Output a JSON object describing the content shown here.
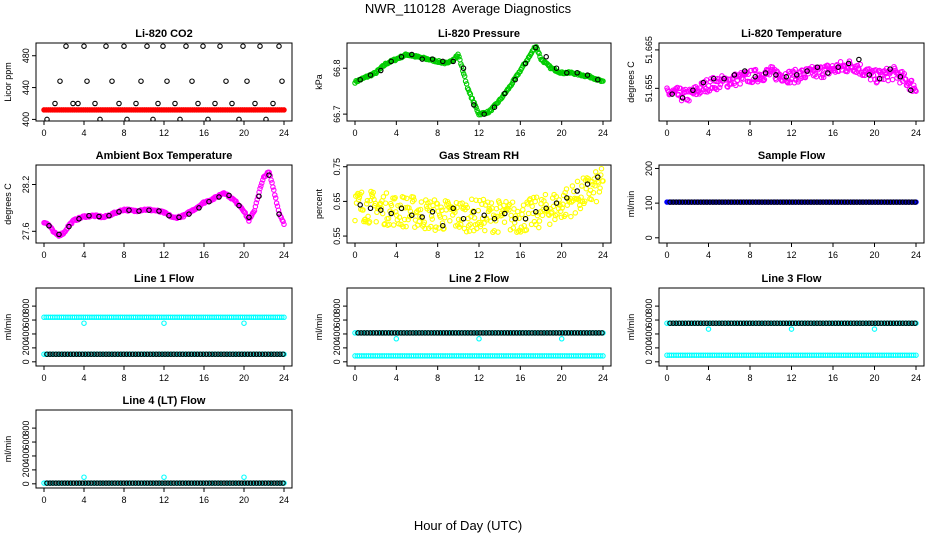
{
  "page": {
    "title": "NWR_110128  Average Diagnostics",
    "xlabel": "Hour of Day (UTC)"
  },
  "colors": {
    "black": "#000000",
    "red": "#ff0000",
    "green": "#00cc00",
    "magenta": "#ff00ff",
    "yellow": "#ffff00",
    "cyan": "#00ffff",
    "blue": "#0000ff"
  },
  "chart_data": [
    {
      "type": "scatter",
      "title": "Li-820 CO2",
      "ylabel": "Licor ppm",
      "xlim": [
        0,
        24
      ],
      "xticks": [
        0,
        4,
        8,
        12,
        16,
        20,
        24
      ],
      "ylim": [
        398,
        496
      ],
      "yticks": [
        400,
        440,
        480
      ],
      "series": [
        {
          "color": "red",
          "style": "band",
          "x": [
            0,
            24
          ],
          "y": [
            412,
            412
          ]
        },
        {
          "color": "black",
          "style": "points",
          "x": [
            0.3,
            1.1,
            1.6,
            2.2,
            2.9,
            3.4,
            4.0,
            4.3,
            5.1,
            5.6,
            6.2,
            6.8,
            7.5,
            8.0,
            8.3,
            9.2,
            9.7,
            10.3,
            10.9,
            11.4,
            11.9,
            12.3,
            13.1,
            13.6,
            14.2,
            14.8,
            15.4,
            15.9,
            16.4,
            17.1,
            17.6,
            18.2,
            18.8,
            19.5,
            19.9,
            20.3,
            21.1,
            21.6,
            22.2,
            22.9,
            23.5,
            23.8
          ],
          "y": [
            400,
            420,
            448,
            492,
            420,
            420,
            492,
            448,
            420,
            400,
            492,
            448,
            420,
            492,
            400,
            420,
            448,
            492,
            400,
            420,
            492,
            448,
            420,
            400,
            492,
            448,
            420,
            492,
            400,
            420,
            492,
            448,
            420,
            400,
            492,
            448,
            420,
            492,
            400,
            420,
            492,
            448
          ]
        }
      ]
    },
    {
      "type": "scatter",
      "title": "Li-820 Pressure",
      "ylabel": "kPa",
      "xlim": [
        0,
        24
      ],
      "xticks": [
        0,
        4,
        8,
        12,
        16,
        20,
        24
      ],
      "ylim": [
        66.685,
        66.855
      ],
      "yticks": [
        66.7,
        66.8
      ],
      "series": [
        {
          "color": "green",
          "style": "dense",
          "x": [
            0,
            1,
            2,
            3,
            4,
            5,
            6,
            7,
            8,
            9,
            10,
            11,
            12,
            13,
            14,
            15,
            16,
            17,
            17.5,
            18,
            19,
            20,
            21,
            22,
            23,
            24
          ],
          "y": [
            66.77,
            66.78,
            66.79,
            66.81,
            66.82,
            66.83,
            66.825,
            66.82,
            66.815,
            66.81,
            66.83,
            66.75,
            66.7,
            66.705,
            66.73,
            66.76,
            66.795,
            66.83,
            66.85,
            66.82,
            66.8,
            66.79,
            66.79,
            66.785,
            66.78,
            66.77
          ]
        },
        {
          "color": "black",
          "style": "points",
          "x": [
            0.5,
            1.5,
            2.5,
            3.5,
            4.5,
            5.5,
            6.5,
            7.5,
            8.5,
            9.5,
            10.5,
            11.5,
            12.5,
            13.5,
            14.5,
            15.5,
            16.5,
            17.5,
            18.5,
            19.5,
            20.5,
            21.5,
            22.5,
            23.5
          ],
          "y": [
            66.775,
            66.785,
            66.795,
            66.815,
            66.825,
            66.83,
            66.82,
            66.82,
            66.815,
            66.815,
            66.8,
            66.72,
            66.7,
            66.715,
            66.745,
            66.775,
            66.81,
            66.845,
            66.825,
            66.8,
            66.79,
            66.79,
            66.785,
            66.775
          ]
        }
      ]
    },
    {
      "type": "scatter",
      "title": "Li-820 Temperature",
      "ylabel": "degrees C",
      "xlim": [
        0,
        24
      ],
      "xticks": [
        0,
        4,
        8,
        12,
        16,
        20,
        24
      ],
      "ylim": [
        51.6465,
        51.6668
      ],
      "yticks": [
        51.655,
        51.665
      ],
      "series": [
        {
          "color": "magenta",
          "style": "noisy",
          "x": [
            0,
            2,
            4,
            6,
            8,
            10,
            12,
            14,
            16,
            18,
            20,
            22,
            24
          ],
          "y": [
            51.654,
            51.653,
            51.656,
            51.657,
            51.658,
            51.659,
            51.658,
            51.659,
            51.66,
            51.661,
            51.658,
            51.659,
            51.655
          ],
          "spread": 0.0035
        },
        {
          "color": "black",
          "style": "points",
          "x": [
            0.5,
            1.5,
            2.5,
            3.5,
            4.5,
            5.5,
            6.5,
            7.5,
            8.5,
            9.5,
            10.5,
            11.5,
            12.5,
            13.5,
            14.5,
            15.5,
            16.5,
            17.5,
            18.5,
            19.5,
            20.5,
            21.5,
            22.5,
            23.5
          ],
          "y": [
            51.6535,
            51.6525,
            51.6545,
            51.6565,
            51.6575,
            51.6575,
            51.6585,
            51.6595,
            51.658,
            51.659,
            51.6585,
            51.658,
            51.6585,
            51.6595,
            51.6605,
            51.659,
            51.6605,
            51.6615,
            51.6625,
            51.6585,
            51.6575,
            51.66,
            51.658,
            51.6545
          ]
        }
      ]
    },
    {
      "type": "scatter",
      "title": "Ambient Box Temperature",
      "ylabel": "degrees C",
      "xlim": [
        0,
        24
      ],
      "xticks": [
        0,
        4,
        8,
        12,
        16,
        20,
        24
      ],
      "ylim": [
        27.45,
        28.45
      ],
      "yticks": [
        27.6,
        28.2
      ],
      "series": [
        {
          "color": "magenta",
          "style": "dense",
          "x": [
            0,
            0.5,
            1,
            1.5,
            2,
            2.5,
            3,
            4,
            5,
            6,
            7,
            8,
            9,
            10,
            11,
            12,
            13,
            14,
            15,
            16,
            17,
            18,
            19,
            19.8,
            20.5,
            21,
            21.5,
            22,
            22.5,
            23,
            23.5,
            24
          ],
          "y": [
            27.72,
            27.68,
            27.58,
            27.55,
            27.58,
            27.68,
            27.74,
            27.79,
            27.8,
            27.78,
            27.83,
            27.88,
            27.86,
            27.88,
            27.87,
            27.84,
            27.77,
            27.8,
            27.88,
            27.97,
            28.02,
            28.1,
            28.0,
            27.9,
            27.74,
            27.85,
            28.1,
            28.3,
            28.36,
            28.12,
            27.84,
            27.7
          ]
        },
        {
          "color": "black",
          "style": "points",
          "x": [
            0.5,
            1.5,
            2.5,
            3.5,
            4.5,
            5.5,
            6.5,
            7.5,
            8.5,
            9.5,
            10.5,
            11.5,
            12.5,
            13.5,
            14.5,
            15.5,
            16.5,
            17.5,
            18.5,
            19.5,
            20.5,
            21.5,
            22.5,
            23.5
          ],
          "y": [
            27.67,
            27.56,
            27.66,
            27.76,
            27.8,
            27.79,
            27.8,
            27.85,
            27.87,
            27.86,
            27.87,
            27.86,
            27.8,
            27.78,
            27.82,
            27.9,
            27.98,
            28.04,
            28.06,
            27.93,
            27.78,
            28.05,
            28.32,
            27.82
          ]
        }
      ]
    },
    {
      "type": "scatter",
      "title": "Gas Stream RH",
      "ylabel": "percent",
      "xlim": [
        0,
        24
      ],
      "xticks": [
        0,
        4,
        8,
        12,
        16,
        20,
        24
      ],
      "ylim": [
        0.53,
        0.755
      ],
      "yticks": [
        0.55,
        0.65,
        0.75
      ],
      "series": [
        {
          "color": "yellow",
          "style": "noisy",
          "x": [
            0,
            4,
            8,
            12,
            16,
            18,
            20,
            22,
            24
          ],
          "y": [
            0.64,
            0.625,
            0.61,
            0.61,
            0.605,
            0.62,
            0.64,
            0.67,
            0.7
          ],
          "spread": 0.095
        },
        {
          "color": "black",
          "style": "points",
          "x": [
            0.5,
            1.5,
            2.5,
            3.5,
            4.5,
            5.5,
            6.5,
            7.5,
            8.5,
            9.5,
            10.5,
            11.5,
            12.5,
            13.5,
            14.5,
            15.5,
            16.5,
            17.5,
            18.5,
            19.5,
            20.5,
            21.5,
            22.5,
            23.5
          ],
          "y": [
            0.64,
            0.63,
            0.625,
            0.615,
            0.63,
            0.61,
            0.605,
            0.62,
            0.58,
            0.63,
            0.6,
            0.62,
            0.61,
            0.6,
            0.615,
            0.6,
            0.6,
            0.62,
            0.63,
            0.645,
            0.66,
            0.68,
            0.7,
            0.72
          ]
        }
      ]
    },
    {
      "type": "scatter",
      "title": "Sample Flow",
      "ylabel": "ml/min",
      "xlim": [
        0,
        24
      ],
      "xticks": [
        0,
        4,
        8,
        12,
        16,
        20,
        24
      ],
      "ylim": [
        -15,
        210
      ],
      "yticks": [
        0,
        100,
        200
      ],
      "series": [
        {
          "color": "blue",
          "style": "band",
          "x": [
            0,
            24
          ],
          "y": [
            103,
            103
          ]
        },
        {
          "color": "black",
          "style": "line-points",
          "x": [
            0.3,
            23.9
          ],
          "y": [
            103,
            103
          ]
        }
      ]
    },
    {
      "type": "scatter",
      "title": "Line 1 Flow",
      "ylabel": "ml/min",
      "xlim": [
        0,
        24
      ],
      "xticks": [
        0,
        4,
        8,
        12,
        16,
        20,
        24
      ],
      "ylim": [
        -60,
        1060
      ],
      "yticks": [
        0,
        200,
        400,
        600,
        800
      ],
      "series": [
        {
          "color": "cyan",
          "style": "band",
          "x": [
            0,
            24
          ],
          "y": [
            640,
            640
          ]
        },
        {
          "color": "cyan",
          "style": "points",
          "x": [
            4,
            12,
            20
          ],
          "y": [
            555,
            555,
            555
          ]
        },
        {
          "color": "cyan",
          "style": "band-thin",
          "x": [
            0,
            24
          ],
          "y": [
            110,
            110
          ]
        },
        {
          "color": "black",
          "style": "line-points",
          "x": [
            0.3,
            23.9
          ],
          "y": [
            110,
            110
          ]
        }
      ]
    },
    {
      "type": "scatter",
      "title": "Line 2 Flow",
      "ylabel": "ml/min",
      "xlim": [
        0,
        24
      ],
      "xticks": [
        0,
        4,
        8,
        12,
        16,
        20,
        24
      ],
      "ylim": [
        -60,
        1060
      ],
      "yticks": [
        0,
        200,
        400,
        600,
        800
      ],
      "series": [
        {
          "color": "cyan",
          "style": "band",
          "x": [
            0,
            24
          ],
          "y": [
            415,
            415
          ]
        },
        {
          "color": "cyan",
          "style": "points",
          "x": [
            4,
            12,
            20
          ],
          "y": [
            330,
            330,
            330
          ]
        },
        {
          "color": "black",
          "style": "line-points",
          "x": [
            0.3,
            23.9
          ],
          "y": [
            415,
            415
          ]
        },
        {
          "color": "cyan",
          "style": "band",
          "x": [
            0,
            24
          ],
          "y": [
            85,
            85
          ]
        }
      ]
    },
    {
      "type": "scatter",
      "title": "Line 3 Flow",
      "ylabel": "ml/min",
      "xlim": [
        0,
        24
      ],
      "xticks": [
        0,
        4,
        8,
        12,
        16,
        20,
        24
      ],
      "ylim": [
        -60,
        1060
      ],
      "yticks": [
        0,
        200,
        400,
        600,
        800
      ],
      "series": [
        {
          "color": "cyan",
          "style": "band",
          "x": [
            0,
            24
          ],
          "y": [
            555,
            555
          ]
        },
        {
          "color": "cyan",
          "style": "points",
          "x": [
            4,
            12,
            20
          ],
          "y": [
            470,
            470,
            470
          ]
        },
        {
          "color": "black",
          "style": "line-points",
          "x": [
            0.3,
            23.9
          ],
          "y": [
            555,
            555
          ]
        },
        {
          "color": "cyan",
          "style": "band",
          "x": [
            0,
            24
          ],
          "y": [
            95,
            95
          ]
        }
      ]
    },
    {
      "type": "scatter",
      "title": "Line 4 (LT) Flow",
      "ylabel": "ml/min",
      "xlim": [
        0,
        24
      ],
      "xticks": [
        0,
        4,
        8,
        12,
        16,
        20,
        24
      ],
      "ylim": [
        -60,
        1060
      ],
      "yticks": [
        0,
        200,
        400,
        600,
        800
      ],
      "series": [
        {
          "color": "cyan",
          "style": "band",
          "x": [
            0,
            24
          ],
          "y": [
            10,
            10
          ]
        },
        {
          "color": "cyan",
          "style": "points",
          "x": [
            4,
            12,
            20
          ],
          "y": [
            95,
            95,
            95
          ]
        },
        {
          "color": "black",
          "style": "line-points",
          "x": [
            0.3,
            23.9
          ],
          "y": [
            10,
            10
          ]
        }
      ]
    }
  ]
}
